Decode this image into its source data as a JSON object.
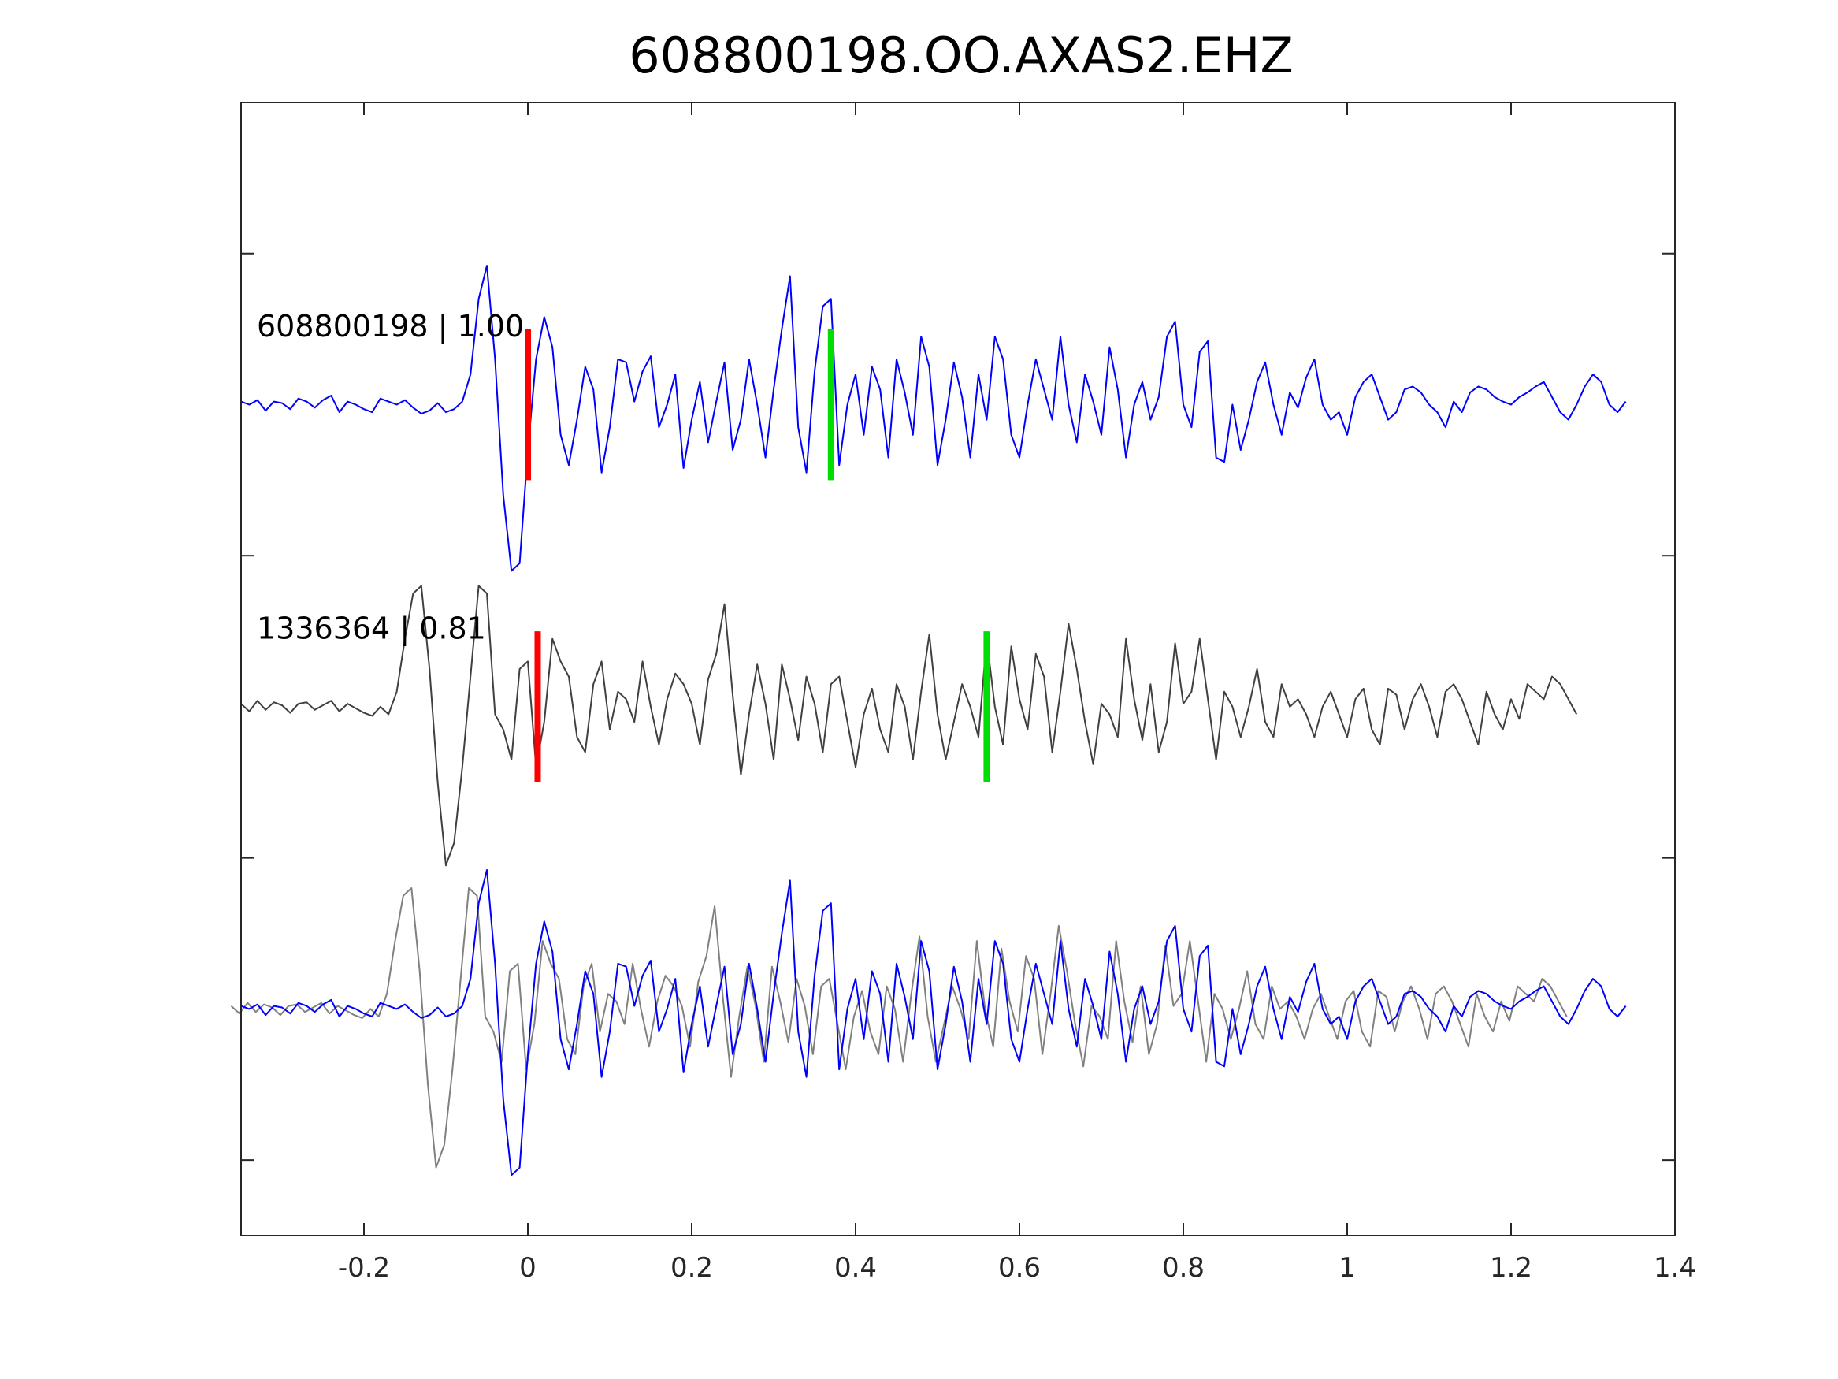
{
  "chart_data": {
    "type": "line",
    "title": "608800198.OO.AXAS2.EHZ",
    "xlabel": "",
    "ylabel": "",
    "xlim": [
      -0.35,
      1.4
    ],
    "ylim": [
      0,
      7.5
    ],
    "x_ticks": [
      -0.2,
      0,
      0.2,
      0.4,
      0.6,
      0.8,
      1,
      1.2,
      1.4
    ],
    "x_tick_labels": [
      "-0.2",
      "0",
      "0.2",
      "0.4",
      "0.6",
      "0.8",
      "1",
      "1.2",
      "1.4"
    ],
    "y_ticks": [
      0.5,
      2.5,
      4.5,
      6.5
    ],
    "y_tick_labels_shown": false,
    "grid": false,
    "legend": "none",
    "colors": {
      "master": "#0000ff",
      "template": "#404040",
      "template_overlay": "#808080",
      "p_pick": "#ff0000",
      "s_pick": "#00dd00"
    },
    "traces": [
      {
        "label": "608800198 | 1.00",
        "baseline": 5.5,
        "color": "#0000ff",
        "p_pick": 0.0,
        "s_pick": 0.37,
        "t0": -0.35,
        "dt": 0.01,
        "values": [
          0.02,
          0.0,
          0.03,
          -0.04,
          0.02,
          0.01,
          -0.03,
          0.04,
          0.02,
          -0.02,
          0.03,
          0.06,
          -0.05,
          0.02,
          0.0,
          -0.03,
          -0.05,
          0.04,
          0.02,
          0.0,
          0.03,
          -0.02,
          -0.06,
          -0.04,
          0.01,
          -0.05,
          -0.03,
          0.02,
          0.2,
          0.7,
          0.92,
          0.3,
          -0.6,
          -1.1,
          -1.05,
          -0.3,
          0.3,
          0.58,
          0.38,
          -0.2,
          -0.4,
          -0.1,
          0.25,
          0.1,
          -0.45,
          -0.15,
          0.3,
          0.28,
          0.02,
          0.22,
          0.32,
          -0.15,
          0.0,
          0.2,
          -0.42,
          -0.1,
          0.15,
          -0.25,
          0.02,
          0.28,
          -0.3,
          -0.1,
          0.3,
          0.0,
          -0.35,
          0.1,
          0.5,
          0.85,
          -0.15,
          -0.45,
          0.22,
          0.65,
          0.7,
          -0.4,
          0.0,
          0.2,
          -0.2,
          0.25,
          0.1,
          -0.35,
          0.3,
          0.08,
          -0.2,
          0.45,
          0.25,
          -0.4,
          -0.1,
          0.28,
          0.05,
          -0.35,
          0.2,
          -0.1,
          0.45,
          0.3,
          -0.2,
          -0.35,
          0.0,
          0.3,
          0.1,
          -0.1,
          0.45,
          0.0,
          -0.25,
          0.2,
          0.02,
          -0.2,
          0.38,
          0.1,
          -0.35,
          0.0,
          0.15,
          -0.1,
          0.05,
          0.45,
          0.55,
          0.0,
          -0.15,
          0.35,
          0.42,
          -0.35,
          -0.38,
          0.0,
          -0.3,
          -0.1,
          0.15,
          0.28,
          0.0,
          -0.2,
          0.08,
          -0.02,
          0.18,
          0.3,
          0.0,
          -0.1,
          -0.05,
          -0.2,
          0.05,
          0.15,
          0.2,
          0.05,
          -0.1,
          -0.05,
          0.1,
          0.12,
          0.08,
          0.0,
          -0.05,
          -0.15,
          0.02,
          -0.05,
          0.08,
          0.12,
          0.1,
          0.05,
          0.02,
          0.0,
          0.05,
          0.08,
          0.12,
          0.15,
          0.05,
          -0.05,
          -0.1,
          0.0,
          0.12,
          0.2,
          0.15,
          0.0,
          -0.05,
          0.02
        ]
      },
      {
        "label": "1336364 | 0.81",
        "baseline": 3.5,
        "color": "#404040",
        "p_pick": 0.012,
        "s_pick": 0.56,
        "t0": -0.35,
        "dt": 0.01,
        "values": [
          0.02,
          -0.03,
          0.04,
          -0.02,
          0.03,
          0.01,
          -0.04,
          0.02,
          0.03,
          -0.02,
          0.01,
          0.04,
          -0.03,
          0.02,
          -0.01,
          -0.04,
          -0.06,
          0.0,
          -0.05,
          0.1,
          0.45,
          0.75,
          0.8,
          0.25,
          -0.5,
          -1.05,
          -0.9,
          -0.4,
          0.2,
          0.8,
          0.75,
          -0.05,
          -0.15,
          -0.35,
          0.25,
          0.3,
          -0.4,
          -0.1,
          0.45,
          0.3,
          0.2,
          -0.2,
          -0.3,
          0.15,
          0.3,
          -0.15,
          0.1,
          0.05,
          -0.1,
          0.3,
          0.0,
          -0.25,
          0.05,
          0.22,
          0.15,
          0.02,
          -0.25,
          0.18,
          0.35,
          0.68,
          0.08,
          -0.45,
          -0.05,
          0.28,
          0.02,
          -0.35,
          0.28,
          0.05,
          -0.22,
          0.2,
          0.02,
          -0.3,
          0.15,
          0.2,
          -0.1,
          -0.4,
          -0.05,
          0.12,
          -0.15,
          -0.3,
          0.15,
          0.0,
          -0.35,
          0.1,
          0.48,
          -0.05,
          -0.35,
          -0.1,
          0.15,
          0.0,
          -0.2,
          0.45,
          0.0,
          -0.25,
          0.4,
          0.05,
          -0.15,
          0.35,
          0.2,
          -0.3,
          0.1,
          0.55,
          0.25,
          -0.1,
          -0.38,
          0.02,
          -0.05,
          -0.2,
          0.45,
          0.05,
          -0.22,
          0.15,
          -0.3,
          -0.1,
          0.42,
          0.02,
          0.1,
          0.45,
          0.05,
          -0.35,
          0.1,
          0.0,
          -0.2,
          0.0,
          0.25,
          -0.1,
          -0.2,
          0.15,
          0.0,
          0.05,
          -0.05,
          -0.2,
          0.0,
          0.1,
          -0.05,
          -0.2,
          0.05,
          0.12,
          -0.15,
          -0.25,
          0.12,
          0.08,
          -0.15,
          0.05,
          0.15,
          0.0,
          -0.2,
          0.1,
          0.15,
          0.05,
          -0.1,
          -0.25,
          0.1,
          -0.05,
          -0.15,
          0.05,
          -0.08,
          0.15,
          0.1,
          0.05,
          0.2,
          0.15,
          0.05,
          -0.05
        ]
      }
    ],
    "overlay": {
      "baseline": 1.5,
      "description_colors": [
        "#0000ff",
        "#808080"
      ]
    }
  }
}
